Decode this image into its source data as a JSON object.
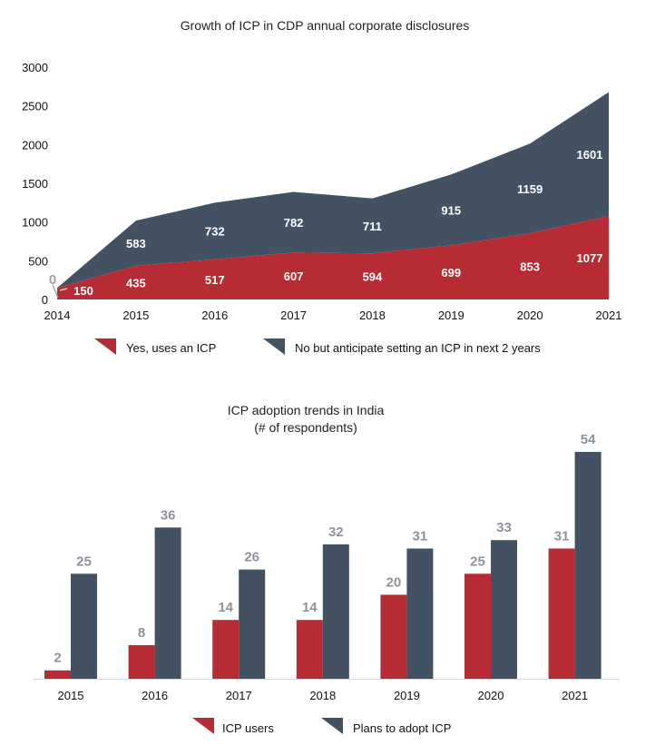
{
  "colors": {
    "red": "#b72b34",
    "slate": "#435262",
    "gray_label": "#8d939b"
  },
  "chart_data": [
    {
      "type": "area",
      "title": "Growth of ICP in CDP annual corporate disclosures",
      "categories": [
        "2014",
        "2015",
        "2016",
        "2017",
        "2018",
        "2019",
        "2020",
        "2021"
      ],
      "stacked": true,
      "ylim": [
        0,
        3000
      ],
      "yticks": [
        "0",
        "500",
        "1000",
        "1500",
        "2000",
        "2500",
        "3000"
      ],
      "series": [
        {
          "name": "Yes, uses an ICP",
          "color": "#b72b34",
          "values": [
            150,
            435,
            517,
            607,
            594,
            699,
            853,
            1077
          ],
          "labels": [
            "150",
            "435",
            "517",
            "607",
            "594",
            "699",
            "853",
            "1077"
          ]
        },
        {
          "name": "No but anticipate setting an ICP in next 2 years",
          "color": "#435262",
          "values": [
            0,
            583,
            732,
            782,
            711,
            915,
            1159,
            1601
          ],
          "labels": [
            "0",
            "583",
            "732",
            "782",
            "711",
            "915",
            "1159",
            "1601"
          ]
        }
      ],
      "legend": [
        "Yes, uses an ICP",
        "No but anticipate setting an ICP in next 2 years"
      ]
    },
    {
      "type": "bar",
      "title_line1": "ICP adoption trends in India",
      "title_line2": "(# of respondents)",
      "categories": [
        "2015",
        "2016",
        "2017",
        "2018",
        "2019",
        "2020",
        "2021"
      ],
      "ylim": [
        0,
        60
      ],
      "series": [
        {
          "name": "ICP users",
          "color": "#b72b34",
          "values": [
            2,
            8,
            14,
            14,
            20,
            25,
            31
          ],
          "labels": [
            "2",
            "8",
            "14",
            "14",
            "20",
            "25",
            "31"
          ]
        },
        {
          "name": "Plans to adopt ICP",
          "color": "#435262",
          "values": [
            25,
            36,
            26,
            32,
            31,
            33,
            54
          ],
          "labels": [
            "25",
            "36",
            "26",
            "32",
            "31",
            "33",
            "54"
          ]
        }
      ],
      "legend": [
        "ICP users",
        "Plans to adopt ICP"
      ]
    }
  ]
}
